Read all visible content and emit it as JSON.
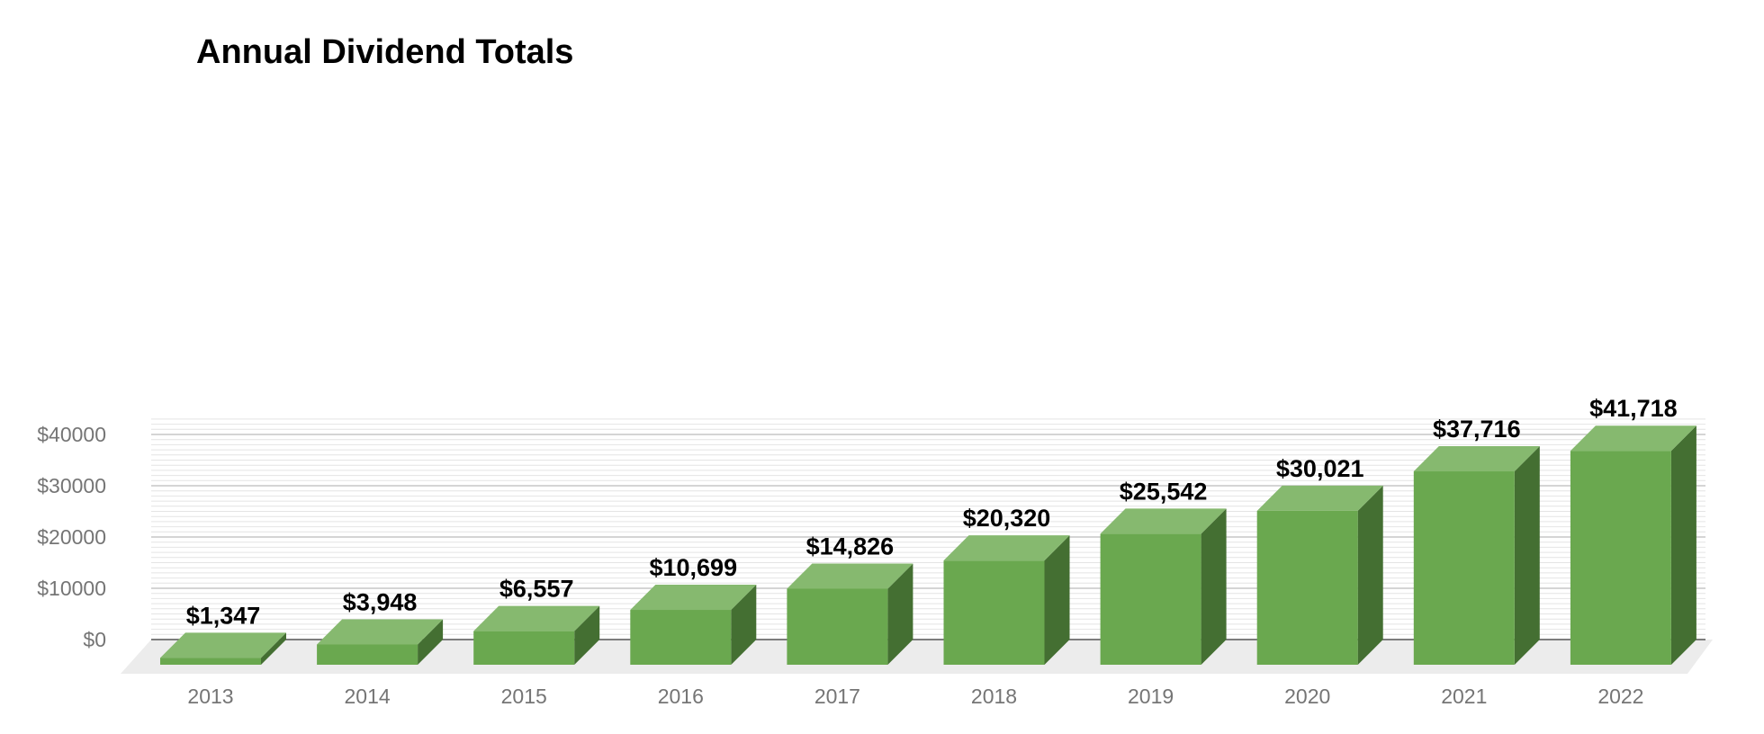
{
  "chart_data": {
    "type": "bar",
    "title": "Annual Dividend Totals",
    "xlabel": "",
    "ylabel": "",
    "categories": [
      "2013",
      "2014",
      "2015",
      "2016",
      "2017",
      "2018",
      "2019",
      "2020",
      "2021",
      "2022"
    ],
    "values": [
      1347,
      3948,
      6557,
      10699,
      14826,
      20320,
      25542,
      30021,
      37716,
      41718
    ],
    "data_labels": [
      "$1,347",
      "$3,948",
      "$6,557",
      "$10,699",
      "$14,826",
      "$20,320",
      "$25,542",
      "$30,021",
      "$37,716",
      "$41,718"
    ],
    "ylim": [
      0,
      41718
    ],
    "y_ticks": [
      0,
      10000,
      20000,
      30000,
      40000
    ],
    "y_tick_labels": [
      "$0",
      "$10000",
      "$20000",
      "$30000",
      "$40000"
    ],
    "style": "3d",
    "grid": true,
    "legend": "none",
    "colors": {
      "bar_front": "#6aa84f",
      "bar_top": "#86b96f",
      "bar_side": "#446f32",
      "major_grid": "#c7c7c7",
      "minor_grid": "#e4e4e4",
      "floor": "#ececec",
      "baseline": "#555555"
    }
  }
}
